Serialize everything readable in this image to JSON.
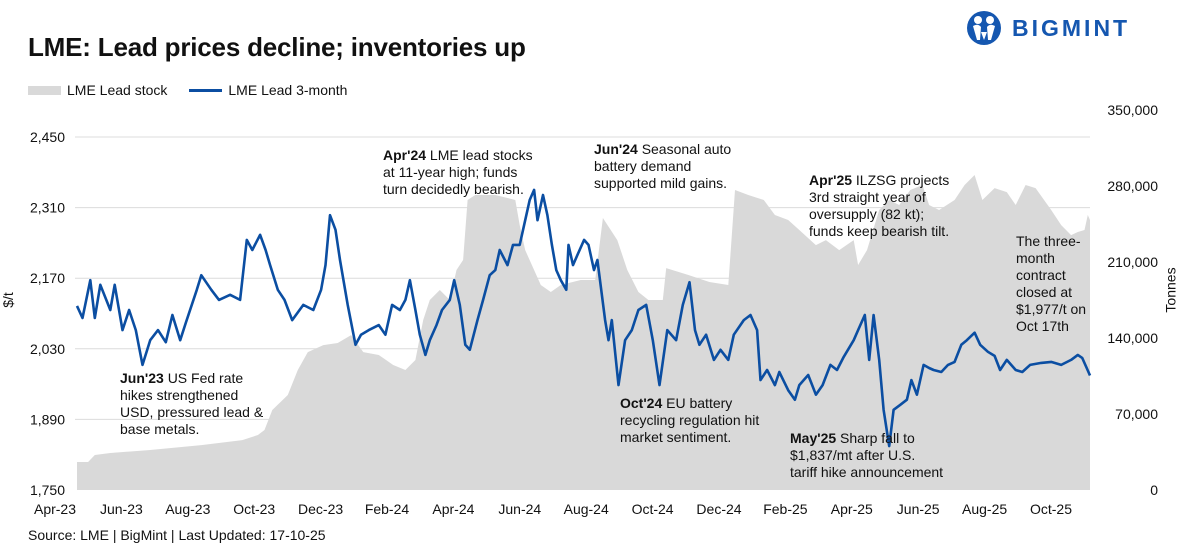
{
  "title": "LME: Lead prices decline; inventories up",
  "logo": {
    "text": "BIGMINT",
    "color": "#1557b0",
    "icon": "people-circle-logo-icon"
  },
  "legend": [
    {
      "label": "LME Lead stock",
      "color": "#d9d9d9",
      "type": "area"
    },
    {
      "label": "LME Lead 3-month",
      "color": "#0b4ea2",
      "type": "line"
    }
  ],
  "source": "Source: LME | BigMint | Last Updated: 17-10-25",
  "annotations": [
    {
      "bold": "Apr'24",
      "lines": [
        "LME lead stocks",
        "at 11-year high; funds",
        "turn decidedly bearish."
      ]
    },
    {
      "bold": "Jun'24",
      "lines": [
        "Seasonal auto",
        "battery demand",
        "supported mild gains."
      ]
    },
    {
      "bold": "Apr'25",
      "lines": [
        "ILZSG projects",
        "3rd straight year of",
        "oversupply (82 kt);",
        "funds keep bearish tilt."
      ]
    },
    {
      "bold": "",
      "lines": [
        "The three-",
        "month",
        "contract",
        "closed at",
        "$1,977/t on",
        "Oct 17th"
      ]
    },
    {
      "bold": "Jun'23",
      "lines": [
        "US Fed rate",
        "hikes strengthened",
        "USD, pressured lead &",
        "base metals."
      ]
    },
    {
      "bold": "Oct'24",
      "lines": [
        "EU battery",
        "recycling regulation hit",
        "market sentiment."
      ]
    },
    {
      "bold": "May'25",
      "lines": [
        "Sharp fall to",
        "$1,837/mt after U.S.",
        "tariff hike announcement"
      ]
    }
  ],
  "chart_data": {
    "type": "line+area",
    "title": "LME: Lead prices decline; inventories up",
    "ylabel": "$/t",
    "y2label": "Tonnes",
    "ylim": [
      1750,
      2450
    ],
    "y2lim": [
      0,
      350000
    ],
    "yticks": [
      "1,750",
      "1,890",
      "2,030",
      "2,170",
      "2,310",
      "2,450"
    ],
    "y2ticks": [
      "0",
      "70,000",
      "140,000",
      "210,000",
      "280,000",
      "350,000"
    ],
    "xticks": [
      "Apr-23",
      "Jun-23",
      "Aug-23",
      "Oct-23",
      "Dec-23",
      "Feb-24",
      "Apr-24",
      "Jun-24",
      "Aug-24",
      "Oct-24",
      "Dec-24",
      "Feb-25",
      "Apr-25",
      "Jun-25",
      "Aug-25",
      "Oct-25"
    ],
    "grid": true,
    "legend_position": "top-left",
    "series": [
      {
        "name": "LME Lead stock",
        "axis": "right",
        "kind": "area",
        "color": "#d9d9d9",
        "points": [
          [
            "2023-04-18",
            25800
          ],
          [
            "2023-04-28",
            25800
          ],
          [
            "2023-05-04",
            32200
          ],
          [
            "2023-05-18",
            34100
          ],
          [
            "2023-06-23",
            36800
          ],
          [
            "2023-08-08",
            41400
          ],
          [
            "2023-09-14",
            46000
          ],
          [
            "2023-09-28",
            50700
          ],
          [
            "2023-10-04",
            55300
          ],
          [
            "2023-10-11",
            73700
          ],
          [
            "2023-10-25",
            87500
          ],
          [
            "2023-11-03",
            110500
          ],
          [
            "2023-11-12",
            127000
          ],
          [
            "2023-11-26",
            133500
          ],
          [
            "2023-12-09",
            135400
          ],
          [
            "2023-12-21",
            142700
          ],
          [
            "2024-01-01",
            127000
          ],
          [
            "2024-01-15",
            124300
          ],
          [
            "2024-01-28",
            115100
          ],
          [
            "2024-02-08",
            110500
          ],
          [
            "2024-02-17",
            119700
          ],
          [
            "2024-02-24",
            156600
          ],
          [
            "2024-03-01",
            175000
          ],
          [
            "2024-03-10",
            184200
          ],
          [
            "2024-03-19",
            175000
          ],
          [
            "2024-03-25",
            202600
          ],
          [
            "2024-03-31",
            211800
          ],
          [
            "2024-04-04",
            267100
          ],
          [
            "2024-04-11",
            271700
          ],
          [
            "2024-04-29",
            271700
          ],
          [
            "2024-05-17",
            267100
          ],
          [
            "2024-05-21",
            244000
          ],
          [
            "2024-05-26",
            221000
          ],
          [
            "2024-06-09",
            188800
          ],
          [
            "2024-06-18",
            182400
          ],
          [
            "2024-06-27",
            188800
          ],
          [
            "2024-07-15",
            193400
          ],
          [
            "2024-07-28",
            193400
          ],
          [
            "2024-08-04",
            250500
          ],
          [
            "2024-08-17",
            230200
          ],
          [
            "2024-08-26",
            202600
          ],
          [
            "2024-09-05",
            182400
          ],
          [
            "2024-09-14",
            175000
          ],
          [
            "2024-09-27",
            175000
          ],
          [
            "2024-09-30",
            204400
          ],
          [
            "2024-10-20",
            198000
          ],
          [
            "2024-11-08",
            191600
          ],
          [
            "2024-11-25",
            188800
          ],
          [
            "2024-12-01",
            276300
          ],
          [
            "2024-12-13",
            271700
          ],
          [
            "2024-12-27",
            267100
          ],
          [
            "2025-01-06",
            253300
          ],
          [
            "2025-01-18",
            248700
          ],
          [
            "2025-01-28",
            239500
          ],
          [
            "2025-02-12",
            225600
          ],
          [
            "2025-02-21",
            230200
          ],
          [
            "2025-03-05",
            221000
          ],
          [
            "2025-03-18",
            230200
          ],
          [
            "2025-03-22",
            207200
          ],
          [
            "2025-03-30",
            221000
          ],
          [
            "2025-04-10",
            257900
          ],
          [
            "2025-04-19",
            267100
          ],
          [
            "2025-04-28",
            262500
          ],
          [
            "2025-05-08",
            276300
          ],
          [
            "2025-05-19",
            280900
          ],
          [
            "2025-05-25",
            262500
          ],
          [
            "2025-06-03",
            257900
          ],
          [
            "2025-06-17",
            267100
          ],
          [
            "2025-06-26",
            280900
          ],
          [
            "2025-07-05",
            290100
          ],
          [
            "2025-07-12",
            267100
          ],
          [
            "2025-07-23",
            278100
          ],
          [
            "2025-08-03",
            274400
          ],
          [
            "2025-08-11",
            262500
          ],
          [
            "2025-08-20",
            280900
          ],
          [
            "2025-08-29",
            278100
          ],
          [
            "2025-09-12",
            257900
          ],
          [
            "2025-09-21",
            244000
          ],
          [
            "2025-09-30",
            234800
          ],
          [
            "2025-10-06",
            237600
          ],
          [
            "2025-10-12",
            239500
          ],
          [
            "2025-10-15",
            253300
          ],
          [
            "2025-10-17",
            248700
          ]
        ]
      },
      {
        "name": "LME Lead 3-month",
        "axis": "left",
        "kind": "line",
        "color": "#0b4ea2",
        "points": [
          [
            "2023-04-18",
            2115
          ],
          [
            "2023-04-23",
            2091
          ],
          [
            "2023-04-30",
            2166
          ],
          [
            "2023-05-04",
            2091
          ],
          [
            "2023-05-09",
            2157
          ],
          [
            "2023-05-18",
            2107
          ],
          [
            "2023-05-22",
            2157
          ],
          [
            "2023-05-29",
            2067
          ],
          [
            "2023-06-04",
            2107
          ],
          [
            "2023-06-10",
            2067
          ],
          [
            "2023-06-16",
            1998
          ],
          [
            "2023-06-23",
            2047
          ],
          [
            "2023-06-30",
            2067
          ],
          [
            "2023-07-07",
            2043
          ],
          [
            "2023-07-13",
            2097
          ],
          [
            "2023-07-20",
            2047
          ],
          [
            "2023-07-25",
            2081
          ],
          [
            "2023-08-04",
            2147
          ],
          [
            "2023-08-08",
            2176
          ],
          [
            "2023-08-17",
            2147
          ],
          [
            "2023-08-24",
            2127
          ],
          [
            "2023-09-03",
            2137
          ],
          [
            "2023-09-12",
            2127
          ],
          [
            "2023-09-18",
            2246
          ],
          [
            "2023-09-23",
            2226
          ],
          [
            "2023-09-30",
            2256
          ],
          [
            "2023-10-05",
            2226
          ],
          [
            "2023-10-09",
            2196
          ],
          [
            "2023-10-16",
            2147
          ],
          [
            "2023-10-22",
            2127
          ],
          [
            "2023-10-29",
            2087
          ],
          [
            "2023-11-08",
            2117
          ],
          [
            "2023-11-17",
            2107
          ],
          [
            "2023-11-24",
            2147
          ],
          [
            "2023-11-28",
            2196
          ],
          [
            "2023-12-02",
            2295
          ],
          [
            "2023-12-07",
            2266
          ],
          [
            "2023-12-11",
            2206
          ],
          [
            "2023-12-18",
            2117
          ],
          [
            "2023-12-25",
            2038
          ],
          [
            "2023-12-30",
            2058
          ],
          [
            "2024-01-06",
            2067
          ],
          [
            "2024-01-15",
            2077
          ],
          [
            "2024-01-21",
            2058
          ],
          [
            "2024-01-27",
            2117
          ],
          [
            "2024-02-03",
            2107
          ],
          [
            "2024-02-08",
            2127
          ],
          [
            "2024-02-12",
            2166
          ],
          [
            "2024-02-17",
            2107
          ],
          [
            "2024-02-21",
            2058
          ],
          [
            "2024-02-26",
            2018
          ],
          [
            "2024-03-01",
            2047
          ],
          [
            "2024-03-07",
            2077
          ],
          [
            "2024-03-12",
            2107
          ],
          [
            "2024-03-19",
            2127
          ],
          [
            "2024-03-23",
            2166
          ],
          [
            "2024-03-28",
            2117
          ],
          [
            "2024-04-02",
            2038
          ],
          [
            "2024-04-06",
            2028
          ],
          [
            "2024-04-13",
            2087
          ],
          [
            "2024-04-18",
            2127
          ],
          [
            "2024-04-24",
            2176
          ],
          [
            "2024-04-29",
            2186
          ],
          [
            "2024-05-03",
            2226
          ],
          [
            "2024-05-10",
            2196
          ],
          [
            "2024-05-15",
            2236
          ],
          [
            "2024-05-21",
            2236
          ],
          [
            "2024-05-26",
            2285
          ],
          [
            "2024-05-30",
            2325
          ],
          [
            "2024-06-03",
            2345
          ],
          [
            "2024-06-06",
            2285
          ],
          [
            "2024-06-11",
            2335
          ],
          [
            "2024-06-15",
            2295
          ],
          [
            "2024-06-19",
            2236
          ],
          [
            "2024-06-23",
            2186
          ],
          [
            "2024-06-27",
            2166
          ],
          [
            "2024-07-02",
            2147
          ],
          [
            "2024-07-04",
            2236
          ],
          [
            "2024-07-08",
            2196
          ],
          [
            "2024-07-12",
            2216
          ],
          [
            "2024-07-18",
            2246
          ],
          [
            "2024-07-22",
            2236
          ],
          [
            "2024-07-27",
            2186
          ],
          [
            "2024-07-30",
            2206
          ],
          [
            "2024-08-06",
            2087
          ],
          [
            "2024-08-09",
            2047
          ],
          [
            "2024-08-12",
            2087
          ],
          [
            "2024-08-18",
            1958
          ],
          [
            "2024-08-24",
            2047
          ],
          [
            "2024-08-30",
            2067
          ],
          [
            "2024-09-05",
            2107
          ],
          [
            "2024-09-12",
            2117
          ],
          [
            "2024-09-18",
            2047
          ],
          [
            "2024-09-24",
            1958
          ],
          [
            "2024-10-01",
            2067
          ],
          [
            "2024-10-09",
            2047
          ],
          [
            "2024-10-15",
            2117
          ],
          [
            "2024-10-21",
            2162
          ],
          [
            "2024-10-26",
            2067
          ],
          [
            "2024-10-30",
            2038
          ],
          [
            "2024-11-05",
            2058
          ],
          [
            "2024-11-12",
            2008
          ],
          [
            "2024-11-18",
            2028
          ],
          [
            "2024-11-25",
            2008
          ],
          [
            "2024-11-30",
            2058
          ],
          [
            "2024-12-09",
            2087
          ],
          [
            "2024-12-15",
            2097
          ],
          [
            "2024-12-21",
            2067
          ],
          [
            "2024-12-24",
            1968
          ],
          [
            "2024-12-30",
            1988
          ],
          [
            "2025-01-06",
            1958
          ],
          [
            "2025-01-10",
            1984
          ],
          [
            "2025-01-18",
            1948
          ],
          [
            "2025-01-24",
            1929
          ],
          [
            "2025-01-28",
            1958
          ],
          [
            "2025-02-05",
            1978
          ],
          [
            "2025-02-12",
            1939
          ],
          [
            "2025-02-18",
            1958
          ],
          [
            "2025-02-25",
            1998
          ],
          [
            "2025-03-03",
            1988
          ],
          [
            "2025-03-09",
            2014
          ],
          [
            "2025-03-18",
            2047
          ],
          [
            "2025-03-22",
            2067
          ],
          [
            "2025-03-28",
            2097
          ],
          [
            "2025-04-01",
            2008
          ],
          [
            "2025-04-05",
            2097
          ],
          [
            "2025-04-10",
            2008
          ],
          [
            "2025-04-14",
            1909
          ],
          [
            "2025-04-19",
            1837
          ],
          [
            "2025-04-23",
            1909
          ],
          [
            "2025-04-29",
            1919
          ],
          [
            "2025-05-05",
            1929
          ],
          [
            "2025-05-09",
            1968
          ],
          [
            "2025-05-14",
            1939
          ],
          [
            "2025-05-20",
            1998
          ],
          [
            "2025-05-25",
            1992
          ],
          [
            "2025-05-29",
            1988
          ],
          [
            "2025-06-05",
            1984
          ],
          [
            "2025-06-11",
            1998
          ],
          [
            "2025-06-17",
            2004
          ],
          [
            "2025-06-23",
            2038
          ],
          [
            "2025-06-28",
            2047
          ],
          [
            "2025-07-05",
            2062
          ],
          [
            "2025-07-10",
            2038
          ],
          [
            "2025-07-17",
            2024
          ],
          [
            "2025-07-23",
            2016
          ],
          [
            "2025-07-28",
            1988
          ],
          [
            "2025-08-03",
            2008
          ],
          [
            "2025-08-11",
            1988
          ],
          [
            "2025-08-17",
            1984
          ],
          [
            "2025-08-24",
            1998
          ],
          [
            "2025-09-03",
            2002
          ],
          [
            "2025-09-12",
            2004
          ],
          [
            "2025-09-21",
            1998
          ],
          [
            "2025-09-30",
            2008
          ],
          [
            "2025-10-06",
            2018
          ],
          [
            "2025-10-10",
            2012
          ],
          [
            "2025-10-14",
            1992
          ],
          [
            "2025-10-17",
            1977
          ]
        ]
      }
    ]
  }
}
